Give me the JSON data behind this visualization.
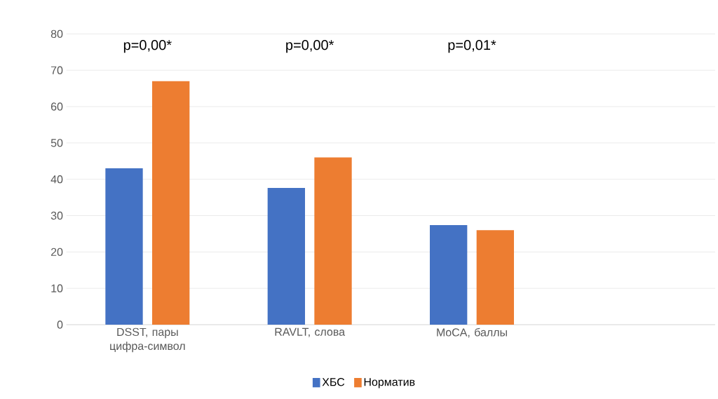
{
  "chart_data": {
    "type": "bar",
    "categories": [
      "DSST, пары цифра-символ",
      "RAVLT, слова",
      "MoCA, баллы",
      null
    ],
    "series": [
      {
        "name": "ХБС",
        "color": "#4472c4",
        "values": [
          43,
          37.6,
          27.4,
          null
        ]
      },
      {
        "name": "Норматив",
        "color": "#ed7d31",
        "values": [
          67,
          46,
          26,
          null
        ]
      }
    ],
    "ylim": [
      0,
      80
    ],
    "yticks": [
      0,
      10,
      20,
      30,
      40,
      50,
      60,
      70,
      80
    ],
    "grid": "y",
    "legend": "bottom",
    "annotations": [
      "p=0,00*",
      "p=0,00*",
      "p=0,01*"
    ]
  }
}
